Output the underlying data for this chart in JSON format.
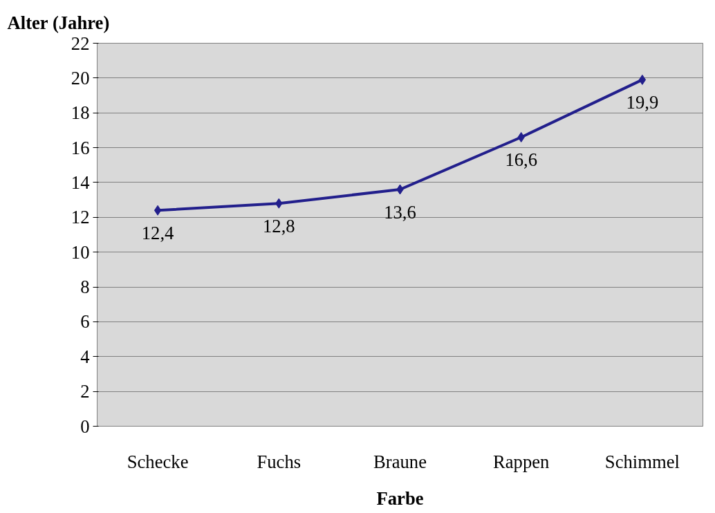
{
  "chart_data": {
    "type": "line",
    "xlabel": "Farbe",
    "ylabel": "Alter (Jahre)",
    "categories": [
      "Schecke",
      "Fuchs",
      "Braune",
      "Rappen",
      "Schimmel"
    ],
    "series": [
      {
        "color": "#221f8c",
        "values": [
          12.4,
          12.8,
          13.6,
          16.6,
          19.9
        ],
        "value_labels": [
          "12,4",
          "12,8",
          "13,6",
          "16,6",
          "19,9"
        ]
      }
    ],
    "ylim": [
      0,
      22
    ],
    "yticks": [
      0,
      2,
      4,
      6,
      8,
      10,
      12,
      14,
      16,
      18,
      20,
      22
    ],
    "grid": "y",
    "marker": "diamond",
    "line_style": "solid"
  }
}
